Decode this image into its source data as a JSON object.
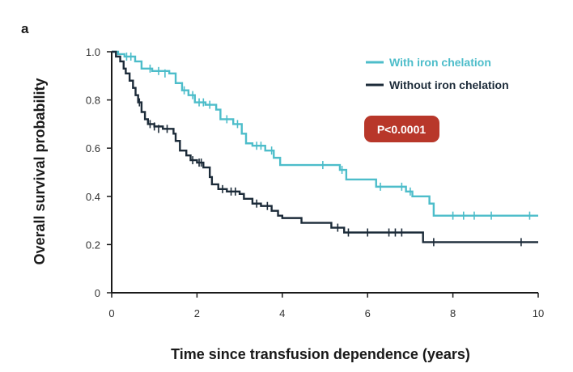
{
  "panel_label": "a",
  "colors": {
    "with_chelation": "#4dbdca",
    "without_chelation": "#1c2b39",
    "pvalue_badge": "#b8372a",
    "axis": "#1a1a1a"
  },
  "chart_data": {
    "type": "line",
    "subtype": "kaplan-meier step",
    "xlabel": "Time since transfusion dependence (years)",
    "ylabel": "Overall survival probability",
    "xlim": [
      0,
      10
    ],
    "ylim": [
      0,
      1.0
    ],
    "x_ticks": [
      "0",
      "2",
      "4",
      "6",
      "8",
      "10"
    ],
    "y_ticks": [
      "0",
      "0.2",
      "0.4",
      "0.6",
      "0.8",
      "1.0"
    ],
    "grid": false,
    "legend_position": "top-right",
    "annotation": "P<0.0001",
    "series": [
      {
        "name": "With iron chelation",
        "color": "#4dbdca",
        "steps": [
          [
            0,
            1.0
          ],
          [
            0.15,
            0.99
          ],
          [
            0.3,
            0.98
          ],
          [
            0.55,
            0.96
          ],
          [
            0.7,
            0.93
          ],
          [
            0.95,
            0.92
          ],
          [
            1.35,
            0.91
          ],
          [
            1.5,
            0.87
          ],
          [
            1.65,
            0.84
          ],
          [
            1.8,
            0.82
          ],
          [
            1.95,
            0.79
          ],
          [
            2.2,
            0.78
          ],
          [
            2.45,
            0.76
          ],
          [
            2.55,
            0.72
          ],
          [
            2.85,
            0.7
          ],
          [
            3.05,
            0.66
          ],
          [
            3.15,
            0.62
          ],
          [
            3.3,
            0.61
          ],
          [
            3.6,
            0.59
          ],
          [
            3.8,
            0.56
          ],
          [
            3.95,
            0.53
          ],
          [
            5.35,
            0.51
          ],
          [
            5.5,
            0.47
          ],
          [
            6.2,
            0.44
          ],
          [
            6.9,
            0.42
          ],
          [
            7.05,
            0.4
          ],
          [
            7.45,
            0.37
          ],
          [
            7.55,
            0.32
          ],
          [
            10,
            0.32
          ]
        ],
        "censored": [
          [
            0.35,
            0.98
          ],
          [
            0.45,
            0.98
          ],
          [
            0.9,
            0.93
          ],
          [
            1.1,
            0.92
          ],
          [
            1.25,
            0.91
          ],
          [
            1.7,
            0.84
          ],
          [
            1.9,
            0.82
          ],
          [
            2.05,
            0.79
          ],
          [
            2.15,
            0.79
          ],
          [
            2.3,
            0.78
          ],
          [
            2.7,
            0.72
          ],
          [
            2.95,
            0.7
          ],
          [
            3.4,
            0.61
          ],
          [
            3.5,
            0.61
          ],
          [
            3.75,
            0.59
          ],
          [
            4.95,
            0.53
          ],
          [
            5.4,
            0.51
          ],
          [
            6.3,
            0.44
          ],
          [
            6.8,
            0.44
          ],
          [
            7.0,
            0.42
          ],
          [
            8.0,
            0.32
          ],
          [
            8.25,
            0.32
          ],
          [
            8.5,
            0.32
          ],
          [
            8.9,
            0.32
          ],
          [
            9.8,
            0.32
          ]
        ]
      },
      {
        "name": "Without iron chelation",
        "color": "#1c2b39",
        "steps": [
          [
            0,
            1.0
          ],
          [
            0.1,
            0.98
          ],
          [
            0.2,
            0.96
          ],
          [
            0.28,
            0.93
          ],
          [
            0.33,
            0.91
          ],
          [
            0.42,
            0.88
          ],
          [
            0.5,
            0.85
          ],
          [
            0.56,
            0.82
          ],
          [
            0.62,
            0.79
          ],
          [
            0.7,
            0.75
          ],
          [
            0.78,
            0.72
          ],
          [
            0.85,
            0.7
          ],
          [
            1.0,
            0.69
          ],
          [
            1.2,
            0.68
          ],
          [
            1.45,
            0.66
          ],
          [
            1.5,
            0.63
          ],
          [
            1.6,
            0.59
          ],
          [
            1.75,
            0.57
          ],
          [
            1.85,
            0.55
          ],
          [
            2.0,
            0.54
          ],
          [
            2.15,
            0.52
          ],
          [
            2.3,
            0.48
          ],
          [
            2.35,
            0.45
          ],
          [
            2.5,
            0.43
          ],
          [
            2.7,
            0.42
          ],
          [
            3.0,
            0.41
          ],
          [
            3.1,
            0.39
          ],
          [
            3.3,
            0.37
          ],
          [
            3.5,
            0.36
          ],
          [
            3.75,
            0.34
          ],
          [
            3.9,
            0.32
          ],
          [
            4.0,
            0.31
          ],
          [
            4.45,
            0.29
          ],
          [
            5.15,
            0.27
          ],
          [
            5.45,
            0.25
          ],
          [
            7.3,
            0.21
          ],
          [
            10,
            0.21
          ]
        ],
        "censored": [
          [
            0.65,
            0.79
          ],
          [
            0.9,
            0.7
          ],
          [
            1.0,
            0.69
          ],
          [
            1.1,
            0.68
          ],
          [
            1.3,
            0.68
          ],
          [
            1.9,
            0.55
          ],
          [
            2.05,
            0.54
          ],
          [
            2.1,
            0.54
          ],
          [
            2.6,
            0.43
          ],
          [
            2.8,
            0.42
          ],
          [
            2.9,
            0.42
          ],
          [
            3.4,
            0.37
          ],
          [
            3.65,
            0.36
          ],
          [
            5.3,
            0.27
          ],
          [
            5.55,
            0.25
          ],
          [
            6.0,
            0.25
          ],
          [
            6.5,
            0.25
          ],
          [
            6.65,
            0.25
          ],
          [
            6.8,
            0.25
          ],
          [
            7.55,
            0.21
          ],
          [
            9.6,
            0.21
          ]
        ]
      }
    ]
  }
}
